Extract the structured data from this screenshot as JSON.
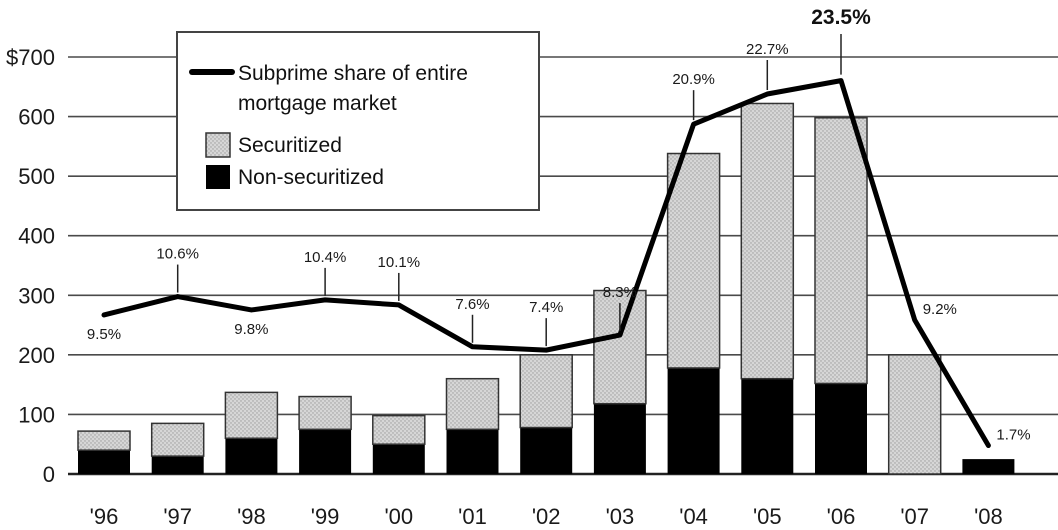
{
  "chart_data": {
    "type": "bar",
    "categories": [
      "'96",
      "'97",
      "'98",
      "'99",
      "'00",
      "'01",
      "'02",
      "'03",
      "'04",
      "'05",
      "'06",
      "'07",
      "'08"
    ],
    "y_axis": {
      "ylim": [
        0,
        700
      ],
      "ticks": [
        "0",
        "100",
        "200",
        "300",
        "400",
        "500",
        "600",
        "$700"
      ]
    },
    "grid": true,
    "series": [
      {
        "name": "Non-securitized",
        "kind": "bar-stacked",
        "color": "#000000",
        "values": [
          40,
          30,
          60,
          75,
          50,
          75,
          78,
          118,
          178,
          160,
          152,
          0,
          25
        ]
      },
      {
        "name": "Securitized",
        "kind": "bar-stacked",
        "color": "#d8d8d8",
        "values": [
          32,
          55,
          77,
          55,
          48,
          85,
          122,
          190,
          360,
          462,
          446,
          200,
          0
        ]
      },
      {
        "name": "Subprime share of entire mortgage market",
        "kind": "line",
        "color": "#000000",
        "values": [
          9.5,
          10.6,
          9.8,
          10.4,
          10.1,
          7.6,
          7.4,
          8.3,
          20.9,
          22.7,
          23.5,
          9.2,
          1.7
        ],
        "labels": [
          "9.5%",
          "10.6%",
          "9.8%",
          "10.4%",
          "10.1%",
          "7.6%",
          "7.4%",
          "8.3%",
          "20.9%",
          "22.7%",
          "23.5%",
          "9.2%",
          "1.7%"
        ]
      }
    ],
    "legend": {
      "placement": "top-left",
      "items": [
        "Subprime share of entire mortgage market",
        "Securitized",
        "Non-securitized"
      ]
    }
  }
}
